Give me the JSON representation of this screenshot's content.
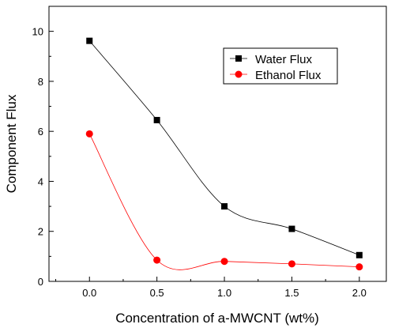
{
  "chart_data": {
    "type": "line",
    "title": "",
    "xlabel": "Concentration of a-MWCNT (wt%)",
    "ylabel": "Component Flux",
    "xlim": [
      -0.3,
      2.2
    ],
    "ylim": [
      0,
      11
    ],
    "x_ticks": [
      0.0,
      0.5,
      1.0,
      1.5,
      2.0
    ],
    "x_tick_labels": [
      "0.0",
      "0.5",
      "1.0",
      "1.5",
      "2.0"
    ],
    "y_ticks": [
      0,
      2,
      4,
      6,
      8,
      10
    ],
    "y_tick_labels": [
      "0",
      "2",
      "4",
      "6",
      "8",
      "10"
    ],
    "grid": false,
    "legend_position": "top-right",
    "series": [
      {
        "name": "Water Flux",
        "marker": "square",
        "color": "#000000",
        "x": [
          0.0,
          0.5,
          1.0,
          1.5,
          2.0
        ],
        "values": [
          9.62,
          6.45,
          3.0,
          2.1,
          1.05
        ]
      },
      {
        "name": "Ethanol Flux",
        "marker": "circle",
        "color": "#ff0000",
        "x": [
          0.0,
          0.5,
          1.0,
          1.5,
          2.0
        ],
        "values": [
          5.9,
          0.85,
          0.8,
          0.7,
          0.58
        ]
      }
    ]
  }
}
